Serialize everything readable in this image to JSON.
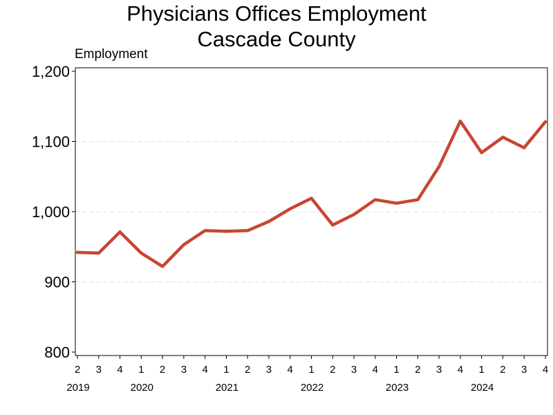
{
  "chart_data": {
    "type": "line",
    "title": "Physicians Offices Employment",
    "subtitle": "Cascade County",
    "ylabel": "Employment",
    "xlabel": "",
    "ylim": [
      800,
      1200
    ],
    "yticks": [
      800,
      900,
      1000,
      1100,
      1200
    ],
    "ytick_labels": [
      "800",
      "900",
      "1,000",
      "1,100",
      "1,200"
    ],
    "grid": true,
    "color": "#c84632",
    "categories": [
      "2",
      "3",
      "4",
      "1",
      "2",
      "3",
      "4",
      "1",
      "2",
      "3",
      "4",
      "1",
      "2",
      "3",
      "4",
      "1",
      "2",
      "3",
      "4",
      "1",
      "2",
      "3",
      "4"
    ],
    "years": [
      {
        "label": "2019",
        "first_index": 0
      },
      {
        "label": "2020",
        "first_index": 3
      },
      {
        "label": "2021",
        "first_index": 7
      },
      {
        "label": "2022",
        "first_index": 11
      },
      {
        "label": "2023",
        "first_index": 15
      },
      {
        "label": "2024",
        "first_index": 19
      }
    ],
    "series": [
      {
        "values": [
          942,
          941,
          971,
          941,
          922,
          953,
          973,
          972,
          973,
          986,
          1004,
          1019,
          981,
          996,
          1017,
          1012,
          1017,
          1064,
          1129,
          1084,
          1106,
          1091,
          1128
        ]
      }
    ]
  }
}
